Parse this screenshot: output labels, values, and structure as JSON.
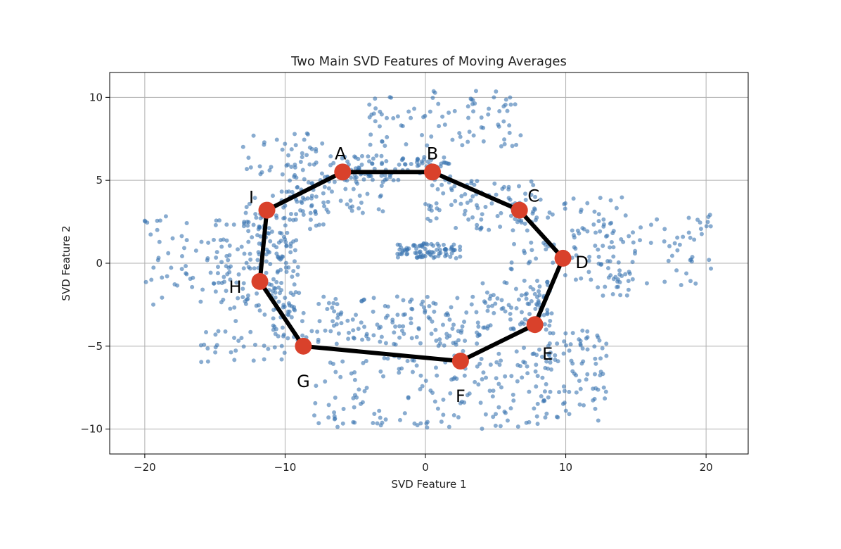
{
  "chart_data": {
    "type": "scatter",
    "title": "Two Main SVD Features of Moving Averages",
    "xlabel": "SVD Feature 1",
    "ylabel": "SVD Feature 2",
    "xlim": [
      -22.5,
      23
    ],
    "ylim": [
      -11.5,
      11.5
    ],
    "xticks": [
      -20,
      -10,
      0,
      10,
      20
    ],
    "yticks": [
      -10,
      -5,
      0,
      5,
      10
    ],
    "xtick_labels": [
      "−20",
      "−10",
      "0",
      "10",
      "20"
    ],
    "ytick_labels": [
      "−10",
      "−5",
      "0",
      "5",
      "10"
    ],
    "grid": true,
    "colors": {
      "scatter": "#3a75b0",
      "path": "#000000",
      "marker": "#d9412b",
      "grid": "#b0b0b0"
    },
    "series": [
      {
        "type": "line-markers",
        "closed": true,
        "points": [
          {
            "label": "A",
            "x": -5.9,
            "y": 5.5
          },
          {
            "label": "B",
            "x": 0.5,
            "y": 5.5
          },
          {
            "label": "C",
            "x": 6.7,
            "y": 3.2
          },
          {
            "label": "D",
            "x": 9.8,
            "y": 0.3
          },
          {
            "label": "E",
            "x": 7.8,
            "y": -3.7
          },
          {
            "label": "F",
            "x": 2.5,
            "y": -5.9
          },
          {
            "label": "G",
            "x": -8.7,
            "y": -5.0
          },
          {
            "label": "H",
            "x": -11.8,
            "y": -1.1
          },
          {
            "label": "I",
            "x": -11.3,
            "y": 3.2
          }
        ]
      }
    ],
    "scatter_clusters": [
      {
        "x": [
          -20,
          -12
        ],
        "y": [
          -2.5,
          3
        ]
      },
      {
        "x": [
          -16,
          -10
        ],
        "y": [
          -6,
          2
        ]
      },
      {
        "x": [
          -13,
          -7
        ],
        "y": [
          2,
          8
        ]
      },
      {
        "x": [
          -10,
          -3
        ],
        "y": [
          3,
          6.5
        ]
      },
      {
        "x": [
          -6,
          2
        ],
        "y": [
          5,
          6.5
        ]
      },
      {
        "x": [
          -4,
          7
        ],
        "y": [
          7,
          10.5
        ]
      },
      {
        "x": [
          0,
          8
        ],
        "y": [
          2,
          5
        ]
      },
      {
        "x": [
          6,
          14
        ],
        "y": [
          -1,
          4
        ]
      },
      {
        "x": [
          12,
          20.5
        ],
        "y": [
          -2,
          3
        ]
      },
      {
        "x": [
          8,
          13
        ],
        "y": [
          -9.5,
          -4
        ]
      },
      {
        "x": [
          2,
          9
        ],
        "y": [
          -10,
          -5
        ]
      },
      {
        "x": [
          -8,
          2
        ],
        "y": [
          -10,
          -5.5
        ]
      },
      {
        "x": [
          -11,
          -3
        ],
        "y": [
          -5,
          -2
        ]
      },
      {
        "x": [
          -12,
          -9
        ],
        "y": [
          -3,
          3
        ]
      },
      {
        "x": [
          -2,
          2.5
        ],
        "y": [
          0.3,
          1.2
        ]
      },
      {
        "x": [
          4,
          9
        ],
        "y": [
          -4,
          -1
        ]
      },
      {
        "x": [
          -3,
          4
        ],
        "y": [
          -5,
          -2
        ]
      }
    ]
  }
}
